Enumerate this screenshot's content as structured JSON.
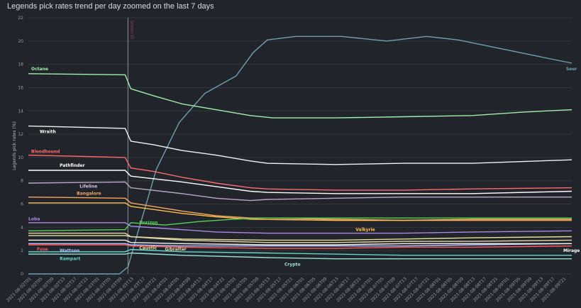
{
  "title": "Legends pick rates trend per day zoomed on the last 7 days",
  "chart_data": {
    "type": "line",
    "ylabel": "Legends pick rates (%)",
    "xlabel": "",
    "ylim": [
      0,
      22
    ],
    "yticks": [
      0,
      2,
      4,
      6,
      8,
      10,
      12,
      14,
      16,
      18,
      20,
      22
    ],
    "grid": true,
    "x_range": [
      "2021-08-02T00",
      "2021-08-09T23"
    ],
    "xticks": [
      "2021-08-02T01",
      "2021-08-02T05",
      "2021-08-02T09",
      "2021-08-02T13",
      "2021-08-02T17",
      "2021-08-02T21",
      "2021-08-03T01",
      "2021-08-03T05",
      "2021-08-03T09",
      "2021-08-03T13",
      "2021-08-03T17",
      "2021-08-03T21",
      "2021-08-04T01",
      "2021-08-04T05",
      "2021-08-04T09",
      "2021-08-04T13",
      "2021-08-04T17",
      "2021-08-04T21",
      "2021-08-05T01",
      "2021-08-05T05",
      "2021-08-05T09",
      "2021-08-05T13",
      "2021-08-05T17",
      "2021-08-05T21",
      "2021-08-06T01",
      "2021-08-06T05",
      "2021-08-06T09",
      "2021-08-06T13",
      "2021-08-06T17",
      "2021-08-06T21",
      "2021-08-07T01",
      "2021-08-07T05",
      "2021-08-07T09",
      "2021-08-07T13",
      "2021-08-07T17",
      "2021-08-07T21",
      "2021-08-08T01",
      "2021-08-08T05",
      "2021-08-08T09",
      "2021-08-08T13",
      "2021-08-08T17",
      "2021-08-08T21",
      "2021-08-09T01",
      "2021-08-09T05",
      "2021-08-09T09",
      "2021-08-09T13",
      "2021-08-09T17",
      "2021-08-09T21"
    ],
    "annotations": [
      {
        "type": "vline",
        "x": "2021-08-03T11",
        "label": "Season 10",
        "color": "#8a8f99"
      }
    ],
    "series": [
      {
        "name": "Seer",
        "color": "#6e9fb0",
        "points": [
          [
            "2021-08-02T00",
            0
          ],
          [
            "2021-08-03T08",
            0
          ],
          [
            "2021-08-03T11",
            0.6
          ],
          [
            "2021-08-03T15",
            4
          ],
          [
            "2021-08-03T21",
            9
          ],
          [
            "2021-08-04T05",
            13
          ],
          [
            "2021-08-04T14",
            15.5
          ],
          [
            "2021-08-05T01",
            17
          ],
          [
            "2021-08-05T07",
            19
          ],
          [
            "2021-08-05T12",
            20.1
          ],
          [
            "2021-08-05T22",
            20.4
          ],
          [
            "2021-08-06T14",
            20.4
          ],
          [
            "2021-08-07T06",
            20
          ],
          [
            "2021-08-07T20",
            20.4
          ],
          [
            "2021-08-08T07",
            20.1
          ],
          [
            "2021-08-08T21",
            19.4
          ],
          [
            "2021-08-09T11",
            18.7
          ],
          [
            "2021-08-09T23",
            18.1
          ]
        ]
      },
      {
        "name": "Octane",
        "color": "#9ff0a8",
        "points": [
          [
            "2021-08-02T00",
            17.2
          ],
          [
            "2021-08-03T10",
            17.1
          ],
          [
            "2021-08-03T12",
            15.9
          ],
          [
            "2021-08-03T20",
            15.3
          ],
          [
            "2021-08-04T06",
            14.6
          ],
          [
            "2021-08-04T18",
            14.1
          ],
          [
            "2021-08-05T06",
            13.6
          ],
          [
            "2021-08-05T14",
            13.4
          ],
          [
            "2021-08-06T12",
            13.4
          ],
          [
            "2021-08-07T12",
            13.5
          ],
          [
            "2021-08-08T12",
            13.6
          ],
          [
            "2021-08-09T06",
            13.9
          ],
          [
            "2021-08-09T23",
            14.1
          ]
        ]
      },
      {
        "name": "Wraith",
        "color": "#f2f2f2",
        "points": [
          [
            "2021-08-02T00",
            12.7
          ],
          [
            "2021-08-03T10",
            12.5
          ],
          [
            "2021-08-03T12",
            11.4
          ],
          [
            "2021-08-03T20",
            11.1
          ],
          [
            "2021-08-04T06",
            10.6
          ],
          [
            "2021-08-04T18",
            10.2
          ],
          [
            "2021-08-05T06",
            9.7
          ],
          [
            "2021-08-05T12",
            9.5
          ],
          [
            "2021-08-06T12",
            9.4
          ],
          [
            "2021-08-07T12",
            9.5
          ],
          [
            "2021-08-08T12",
            9.5
          ],
          [
            "2021-08-09T23",
            9.8
          ]
        ]
      },
      {
        "name": "Bloodhound",
        "color": "#ff6b6b",
        "points": [
          [
            "2021-08-02T00",
            10.2
          ],
          [
            "2021-08-03T10",
            10.0
          ],
          [
            "2021-08-03T12",
            9.1
          ],
          [
            "2021-08-03T20",
            8.8
          ],
          [
            "2021-08-04T06",
            8.3
          ],
          [
            "2021-08-04T18",
            7.8
          ],
          [
            "2021-08-05T06",
            7.4
          ],
          [
            "2021-08-05T12",
            7.3
          ],
          [
            "2021-08-06T12",
            7.2
          ],
          [
            "2021-08-07T12",
            7.2
          ],
          [
            "2021-08-08T12",
            7.3
          ],
          [
            "2021-08-09T23",
            7.4
          ]
        ]
      },
      {
        "name": "Pathfinder",
        "color": "#ffffff",
        "points": [
          [
            "2021-08-02T00",
            8.9
          ],
          [
            "2021-08-03T10",
            8.9
          ],
          [
            "2021-08-03T12",
            8.4
          ],
          [
            "2021-08-04T06",
            7.9
          ],
          [
            "2021-08-04T18",
            7.5
          ],
          [
            "2021-08-05T06",
            7.1
          ],
          [
            "2021-08-05T12",
            7.0
          ],
          [
            "2021-08-06T12",
            6.9
          ],
          [
            "2021-08-07T12",
            6.9
          ],
          [
            "2021-08-08T12",
            6.9
          ],
          [
            "2021-08-09T23",
            7.1
          ]
        ]
      },
      {
        "name": "Lifeline",
        "color": "#b8a8c8",
        "points": [
          [
            "2021-08-02T00",
            7.8
          ],
          [
            "2021-08-03T10",
            7.9
          ],
          [
            "2021-08-03T12",
            7.4
          ],
          [
            "2021-08-04T06",
            6.9
          ],
          [
            "2021-08-04T18",
            6.5
          ],
          [
            "2021-08-05T06",
            6.3
          ],
          [
            "2021-08-05T12",
            6.4
          ],
          [
            "2021-08-06T12",
            6.5
          ],
          [
            "2021-08-07T12",
            6.6
          ],
          [
            "2021-08-08T12",
            6.6
          ],
          [
            "2021-08-09T23",
            6.6
          ]
        ]
      },
      {
        "name": "Bangalore",
        "color": "#f0a860",
        "points": [
          [
            "2021-08-02T00",
            6.6
          ],
          [
            "2021-08-03T10",
            6.5
          ],
          [
            "2021-08-03T12",
            6.1
          ],
          [
            "2021-08-04T06",
            5.4
          ],
          [
            "2021-08-04T18",
            5.0
          ],
          [
            "2021-08-05T06",
            4.8
          ],
          [
            "2021-08-05T12",
            4.8
          ],
          [
            "2021-08-06T12",
            4.7
          ],
          [
            "2021-08-07T12",
            4.6
          ],
          [
            "2021-08-08T12",
            4.6
          ],
          [
            "2021-08-09T23",
            4.6
          ]
        ]
      },
      {
        "name": "Valkyrie",
        "color": "#ffc04a",
        "points": [
          [
            "2021-08-02T00",
            6.1
          ],
          [
            "2021-08-03T10",
            6.1
          ],
          [
            "2021-08-03T12",
            5.8
          ],
          [
            "2021-08-04T06",
            5.2
          ],
          [
            "2021-08-04T18",
            4.9
          ],
          [
            "2021-08-05T06",
            4.7
          ],
          [
            "2021-08-06T12",
            4.6
          ],
          [
            "2021-08-07T12",
            4.6
          ],
          [
            "2021-08-08T12",
            4.7
          ],
          [
            "2021-08-09T23",
            4.7
          ]
        ]
      },
      {
        "name": "Horizon",
        "color": "#5ad05a",
        "points": [
          [
            "2021-08-02T00",
            3.7
          ],
          [
            "2021-08-03T10",
            3.8
          ],
          [
            "2021-08-03T12",
            4.4
          ],
          [
            "2021-08-04T00",
            4.2
          ],
          [
            "2021-08-04T12",
            4.5
          ],
          [
            "2021-08-05T00",
            4.7
          ],
          [
            "2021-08-05T12",
            4.8
          ],
          [
            "2021-08-06T12",
            4.8
          ],
          [
            "2021-08-07T12",
            4.8
          ],
          [
            "2021-08-08T12",
            4.8
          ],
          [
            "2021-08-09T23",
            4.8
          ]
        ]
      },
      {
        "name": "Loba",
        "color": "#a98ae0",
        "points": [
          [
            "2021-08-02T00",
            4.4
          ],
          [
            "2021-08-03T10",
            4.4
          ],
          [
            "2021-08-03T12",
            4.1
          ],
          [
            "2021-08-04T06",
            3.8
          ],
          [
            "2021-08-04T18",
            3.6
          ],
          [
            "2021-08-05T12",
            3.5
          ],
          [
            "2021-08-06T12",
            3.5
          ],
          [
            "2021-08-07T12",
            3.5
          ],
          [
            "2021-08-08T12",
            3.6
          ],
          [
            "2021-08-09T23",
            3.7
          ]
        ]
      },
      {
        "name": "Caustic",
        "color": "#e6e09a",
        "points": [
          [
            "2021-08-02T00",
            3.3
          ],
          [
            "2021-08-03T10",
            3.3
          ],
          [
            "2021-08-03T12",
            3.2
          ],
          [
            "2021-08-04T06",
            3.0
          ],
          [
            "2021-08-05T12",
            2.9
          ],
          [
            "2021-08-06T12",
            2.9
          ],
          [
            "2021-08-07T12",
            3.0
          ],
          [
            "2021-08-08T12",
            3.1
          ],
          [
            "2021-08-09T23",
            3.2
          ]
        ]
      },
      {
        "name": "Gibraltar",
        "color": "#e8d9a6",
        "points": [
          [
            "2021-08-02T00",
            3.5
          ],
          [
            "2021-08-03T10",
            3.5
          ],
          [
            "2021-08-03T12",
            3.2
          ],
          [
            "2021-08-04T06",
            2.9
          ],
          [
            "2021-08-05T12",
            2.7
          ],
          [
            "2021-08-06T12",
            2.7
          ],
          [
            "2021-08-07T12",
            2.8
          ],
          [
            "2021-08-08T12",
            2.8
          ],
          [
            "2021-08-09T23",
            2.9
          ]
        ]
      },
      {
        "name": "Fuse",
        "color": "#ff5a5a",
        "points": [
          [
            "2021-08-02T00",
            2.5
          ],
          [
            "2021-08-03T10",
            2.5
          ],
          [
            "2021-08-03T12",
            2.4
          ],
          [
            "2021-08-04T06",
            2.3
          ],
          [
            "2021-08-05T12",
            2.2
          ],
          [
            "2021-08-06T12",
            2.2
          ],
          [
            "2021-08-07T12",
            2.3
          ],
          [
            "2021-08-08T12",
            2.3
          ],
          [
            "2021-08-09T23",
            2.4
          ]
        ]
      },
      {
        "name": "Wattson",
        "color": "#b0c4ff",
        "points": [
          [
            "2021-08-02T00",
            2.6
          ],
          [
            "2021-08-03T10",
            2.6
          ],
          [
            "2021-08-03T12",
            2.5
          ],
          [
            "2021-08-04T06",
            2.4
          ],
          [
            "2021-08-05T12",
            2.4
          ],
          [
            "2021-08-06T12",
            2.4
          ],
          [
            "2021-08-07T12",
            2.4
          ],
          [
            "2021-08-08T12",
            2.5
          ],
          [
            "2021-08-09T23",
            2.6
          ]
        ]
      },
      {
        "name": "Mirage",
        "color": "#f5f5f5",
        "points": [
          [
            "2021-08-02T00",
            2.9
          ],
          [
            "2021-08-03T10",
            2.9
          ],
          [
            "2021-08-03T12",
            2.7
          ],
          [
            "2021-08-04T06",
            2.6
          ],
          [
            "2021-08-05T12",
            2.5
          ],
          [
            "2021-08-06T12",
            2.5
          ],
          [
            "2021-08-07T12",
            2.6
          ],
          [
            "2021-08-08T12",
            2.6
          ],
          [
            "2021-08-09T23",
            2.6
          ]
        ]
      },
      {
        "name": "Rampart",
        "color": "#5fd8d0",
        "points": [
          [
            "2021-08-02T00",
            1.9
          ],
          [
            "2021-08-03T10",
            1.9
          ],
          [
            "2021-08-03T12",
            2.1
          ],
          [
            "2021-08-04T06",
            1.9
          ],
          [
            "2021-08-05T12",
            1.8
          ],
          [
            "2021-08-06T12",
            1.7
          ],
          [
            "2021-08-07T12",
            1.6
          ],
          [
            "2021-08-08T12",
            1.6
          ],
          [
            "2021-08-09T23",
            1.6
          ]
        ]
      },
      {
        "name": "Crypto",
        "color": "#9be0d4",
        "points": [
          [
            "2021-08-02T00",
            1.7
          ],
          [
            "2021-08-03T10",
            1.7
          ],
          [
            "2021-08-03T12",
            1.8
          ],
          [
            "2021-08-04T06",
            1.6
          ],
          [
            "2021-08-05T12",
            1.4
          ],
          [
            "2021-08-06T12",
            1.3
          ],
          [
            "2021-08-07T12",
            1.3
          ],
          [
            "2021-08-08T12",
            1.3
          ],
          [
            "2021-08-09T23",
            1.3
          ]
        ]
      }
    ],
    "series_labels": [
      {
        "series": "Octane",
        "at": [
          "2021-08-02T01",
          17.5
        ],
        "color": "#9ff0a8"
      },
      {
        "series": "Seer",
        "at": [
          "2021-08-09T21",
          17.5
        ],
        "color": "#6e9fb0"
      },
      {
        "series": "Wraith",
        "at": [
          "2021-08-02T04",
          12.1
        ],
        "color": "#ffffff"
      },
      {
        "series": "Bloodhound",
        "at": [
          "2021-08-02T01",
          10.4
        ],
        "color": "#ff6b6b"
      },
      {
        "series": "Pathfinder",
        "at": [
          "2021-08-02T11",
          9.2
        ],
        "color": "#ffffff"
      },
      {
        "series": "Lifeline",
        "at": [
          "2021-08-02T18",
          7.4
        ],
        "color": "#d6c8e6"
      },
      {
        "series": "Bangalore",
        "at": [
          "2021-08-02T17",
          6.8
        ],
        "color": "#f0a860"
      },
      {
        "series": "Loba",
        "at": [
          "2021-08-02T00",
          4.6
        ],
        "color": "#a98ae0"
      },
      {
        "series": "Horizon",
        "at": [
          "2021-08-03T15",
          4.3
        ],
        "color": "#5ad05a"
      },
      {
        "series": "Valkyrie",
        "at": [
          "2021-08-06T19",
          3.7
        ],
        "color": "#ffc04a"
      },
      {
        "series": "Fuse",
        "at": [
          "2021-08-02T03",
          2.0
        ],
        "color": "#ff5a5a"
      },
      {
        "series": "Wattson",
        "at": [
          "2021-08-02T11",
          1.9
        ],
        "color": "#b0c4ff"
      },
      {
        "series": "Caustic",
        "at": [
          "2021-08-03T15",
          2.1
        ],
        "color": "#e6e09a"
      },
      {
        "series": "Gibraltar",
        "at": [
          "2021-08-04T00",
          2.0
        ],
        "color": "#e8d9a6"
      },
      {
        "series": "Rampart",
        "at": [
          "2021-08-02T11",
          1.2
        ],
        "color": "#5fd8d0"
      },
      {
        "series": "Mirage",
        "at": [
          "2021-08-09T20",
          1.9
        ],
        "color": "#ffffff"
      },
      {
        "series": "Crypto",
        "at": [
          "2021-08-05T18",
          0.7
        ],
        "color": "#9be0d4"
      }
    ]
  }
}
